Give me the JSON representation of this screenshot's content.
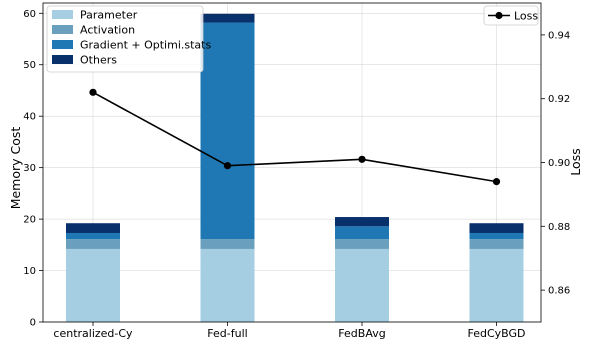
{
  "chart_data": {
    "type": "bar",
    "categories": [
      "centralized-Cy",
      "Fed-full",
      "FedBAvg",
      "FedCyBGD"
    ],
    "series": [
      {
        "name": "Parameter",
        "values": [
          14.2,
          14.2,
          14.2,
          14.2
        ],
        "color": "#a6cee3"
      },
      {
        "name": "Activation",
        "values": [
          1.9,
          1.9,
          1.9,
          1.9
        ],
        "color": "#6a9fbd"
      },
      {
        "name": "Gradient + Optimi.stats",
        "values": [
          1.2,
          42.1,
          2.5,
          1.2
        ],
        "color": "#1f78b4"
      },
      {
        "name": "Others",
        "values": [
          1.9,
          1.7,
          1.8,
          1.9
        ],
        "color": "#08306b"
      }
    ],
    "ylabel": "Memory Cost",
    "ylim": [
      0,
      62
    ],
    "yticks": [
      0,
      10,
      20,
      30,
      40,
      50,
      60
    ],
    "grid": true,
    "legend": "top-left",
    "secondary": {
      "type": "line",
      "name": "Loss",
      "ylabel": "Loss",
      "values": [
        0.922,
        0.899,
        0.901,
        0.894
      ],
      "ylim": [
        0.85,
        0.95
      ],
      "yticks": [
        0.86,
        0.88,
        0.9,
        0.92,
        0.94
      ],
      "color": "#000000",
      "legend": "top-right"
    }
  }
}
